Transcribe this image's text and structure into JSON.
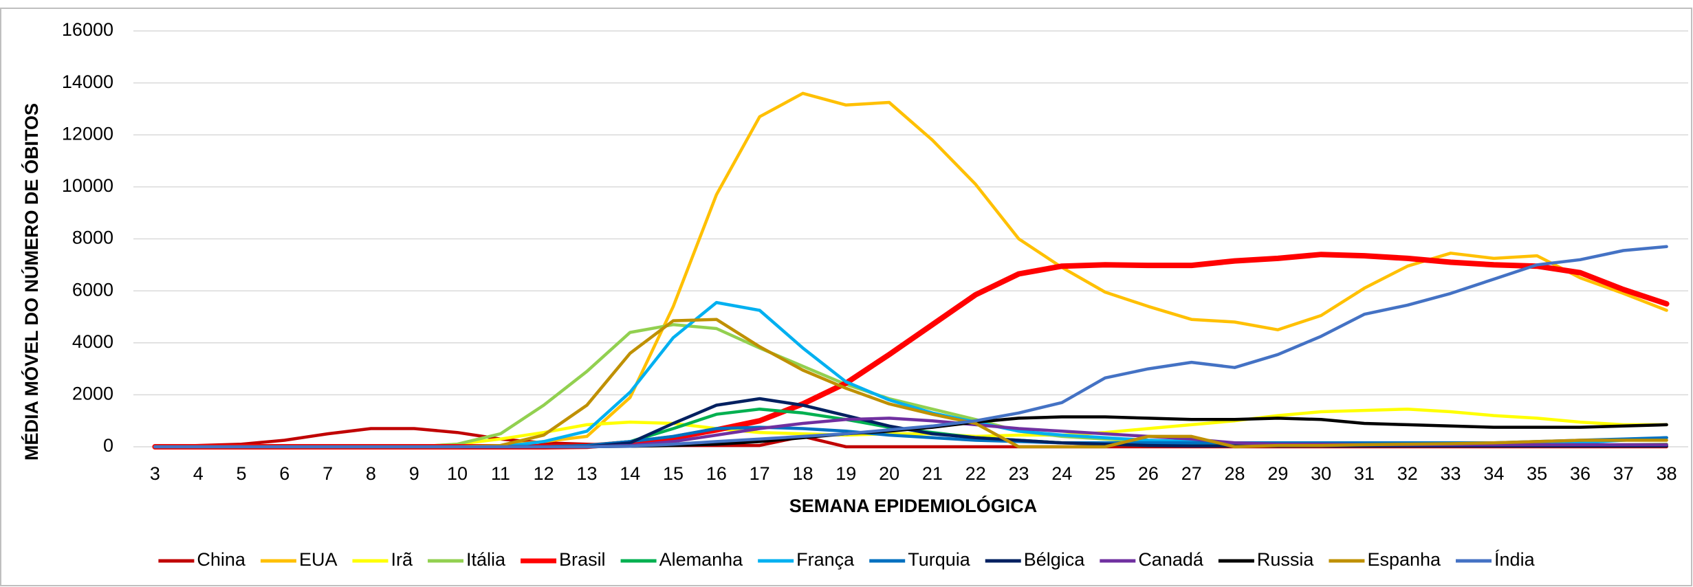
{
  "chart_data": {
    "type": "line",
    "y_label": "MÉDIA MÓVEL DO NÚMERO DE ÓBITOS",
    "x_label": "SEMANA EPIDEMIOLÓGICA",
    "categories": [
      "3",
      "4",
      "5",
      "6",
      "7",
      "8",
      "9",
      "10",
      "11",
      "12",
      "13",
      "14",
      "15",
      "16",
      "17",
      "18",
      "19",
      "20",
      "21",
      "22",
      "23",
      "24",
      "25",
      "26",
      "27",
      "28",
      "29",
      "30",
      "31",
      "32",
      "33",
      "34",
      "35",
      "36",
      "37",
      "38"
    ],
    "ylim": [
      0,
      16000
    ],
    "yticks": [
      0,
      2000,
      4000,
      6000,
      8000,
      10000,
      12000,
      14000,
      16000
    ],
    "grid": true,
    "legend": "bottom",
    "series": [
      {
        "name": "China",
        "color": "#c00000",
        "values": [
          0,
          50,
          100,
          250,
          500,
          700,
          700,
          550,
          300,
          150,
          100,
          50,
          50,
          50,
          50,
          400,
          0,
          0,
          0,
          0,
          0,
          0,
          0,
          0,
          0,
          0,
          0,
          0,
          0,
          0,
          0,
          0,
          0,
          0,
          0,
          0
        ]
      },
      {
        "name": "EUA",
        "color": "#ffc000",
        "values": [
          0,
          0,
          0,
          0,
          0,
          0,
          0,
          0,
          50,
          200,
          400,
          1900,
          5400,
          9700,
          12700,
          13600,
          13150,
          13250,
          11800,
          10100,
          8000,
          6900,
          5950,
          5400,
          4900,
          4800,
          4500,
          5050,
          6100,
          6950,
          7450,
          7250,
          7350,
          6500,
          5900,
          5250
        ]
      },
      {
        "name": "Irã",
        "color": "#ffff00",
        "values": [
          0,
          0,
          0,
          0,
          0,
          0,
          0,
          100,
          300,
          550,
          850,
          950,
          900,
          700,
          550,
          500,
          450,
          500,
          500,
          400,
          450,
          450,
          550,
          700,
          850,
          1000,
          1200,
          1350,
          1400,
          1450,
          1350,
          1200,
          1100,
          950,
          850,
          850
        ]
      },
      {
        "name": "Itália",
        "color": "#92d050",
        "values": [
          0,
          0,
          0,
          0,
          0,
          0,
          0,
          100,
          500,
          1600,
          2900,
          4400,
          4700,
          4550,
          3800,
          3100,
          2400,
          1850,
          1450,
          1050,
          600,
          400,
          300,
          200,
          150,
          100,
          50,
          50,
          50,
          50,
          50,
          50,
          50,
          50,
          80,
          100
        ]
      },
      {
        "name": "Brasil",
        "color": "#ff0000",
        "line_width": 8,
        "values": [
          0,
          0,
          0,
          0,
          0,
          0,
          0,
          0,
          0,
          0,
          20,
          150,
          350,
          650,
          1000,
          1650,
          2450,
          3550,
          4700,
          5850,
          6650,
          6950,
          7000,
          6980,
          6980,
          7150,
          7250,
          7400,
          7350,
          7250,
          7100,
          7000,
          6950,
          6700,
          6050,
          5500
        ]
      },
      {
        "name": "Alemanha",
        "color": "#00b050",
        "values": [
          0,
          0,
          0,
          0,
          0,
          0,
          0,
          0,
          0,
          0,
          50,
          200,
          700,
          1250,
          1450,
          1300,
          1050,
          750,
          550,
          350,
          250,
          150,
          100,
          50,
          50,
          50,
          50,
          50,
          50,
          50,
          50,
          50,
          50,
          50,
          50,
          50
        ]
      },
      {
        "name": "França",
        "color": "#00b0f0",
        "values": [
          0,
          0,
          0,
          0,
          0,
          0,
          0,
          0,
          0,
          200,
          600,
          2100,
          4200,
          5550,
          5250,
          3800,
          2500,
          1800,
          1300,
          950,
          600,
          450,
          350,
          250,
          200,
          150,
          150,
          150,
          150,
          150,
          150,
          150,
          150,
          150,
          250,
          350
        ]
      },
      {
        "name": "Turquia",
        "color": "#0070c0",
        "values": [
          0,
          0,
          0,
          0,
          0,
          0,
          0,
          0,
          0,
          0,
          50,
          200,
          400,
          700,
          750,
          700,
          600,
          450,
          350,
          250,
          200,
          150,
          150,
          150,
          150,
          150,
          150,
          150,
          150,
          150,
          150,
          150,
          200,
          250,
          300,
          350
        ]
      },
      {
        "name": "Bélgica",
        "color": "#002060",
        "values": [
          0,
          0,
          0,
          0,
          0,
          0,
          0,
          0,
          0,
          0,
          0,
          150,
          900,
          1600,
          1850,
          1600,
          1200,
          800,
          500,
          350,
          250,
          150,
          100,
          50,
          30,
          30,
          30,
          30,
          30,
          30,
          30,
          30,
          30,
          30,
          30,
          30
        ]
      },
      {
        "name": "Canadá",
        "color": "#7030a0",
        "values": [
          0,
          0,
          0,
          0,
          0,
          0,
          0,
          0,
          0,
          0,
          0,
          50,
          200,
          450,
          700,
          900,
          1050,
          1100,
          1000,
          850,
          700,
          600,
          500,
          400,
          300,
          150,
          100,
          100,
          80,
          80,
          80,
          80,
          80,
          80,
          80,
          80
        ]
      },
      {
        "name": "Russia",
        "color": "#000000",
        "values": [
          0,
          0,
          0,
          0,
          0,
          0,
          0,
          0,
          0,
          0,
          0,
          20,
          50,
          100,
          200,
          350,
          500,
          600,
          750,
          950,
          1100,
          1150,
          1150,
          1100,
          1050,
          1050,
          1100,
          1050,
          900,
          850,
          800,
          750,
          750,
          750,
          800,
          850
        ]
      },
      {
        "name": "Espanha",
        "color": "#bf9000",
        "values": [
          0,
          0,
          0,
          0,
          0,
          0,
          0,
          0,
          50,
          450,
          1600,
          3600,
          4850,
          4900,
          3850,
          2950,
          2250,
          1650,
          1250,
          900,
          0,
          0,
          0,
          400,
          400,
          0,
          50,
          50,
          80,
          100,
          120,
          150,
          200,
          250,
          250,
          250
        ]
      },
      {
        "name": "Índia",
        "color": "#4472c4",
        "values": [
          0,
          0,
          0,
          0,
          0,
          0,
          0,
          0,
          0,
          0,
          0,
          20,
          100,
          200,
          300,
          400,
          500,
          650,
          800,
          1000,
          1300,
          1700,
          2650,
          3000,
          3250,
          3050,
          3550,
          4250,
          5100,
          5450,
          5900,
          6450,
          7000,
          7200,
          7550,
          7700
        ]
      }
    ]
  }
}
